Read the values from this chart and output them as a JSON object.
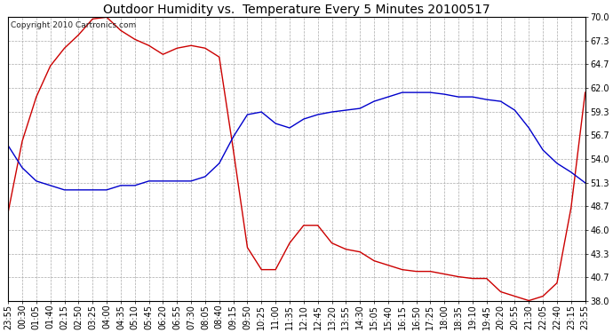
{
  "title": "Outdoor Humidity vs.  Temperature Every 5 Minutes 20100517",
  "copyright_text": "Copyright 2010 Cartronics.com",
  "y_ticks": [
    38.0,
    40.7,
    43.3,
    46.0,
    48.7,
    51.3,
    54.0,
    56.7,
    59.3,
    62.0,
    64.7,
    67.3,
    70.0
  ],
  "ylim": [
    38.0,
    70.0
  ],
  "background_color": "#ffffff",
  "grid_color": "#aaaaaa",
  "red_color": "#cc0000",
  "blue_color": "#0000cc",
  "x_labels": [
    "23:55",
    "00:30",
    "01:05",
    "01:40",
    "02:15",
    "02:50",
    "03:25",
    "04:00",
    "04:35",
    "05:10",
    "05:45",
    "06:20",
    "06:55",
    "07:30",
    "08:05",
    "08:40",
    "09:15",
    "09:50",
    "10:25",
    "11:00",
    "11:35",
    "12:10",
    "12:45",
    "13:20",
    "13:55",
    "14:30",
    "15:05",
    "15:40",
    "16:15",
    "16:50",
    "17:25",
    "18:00",
    "18:35",
    "19:10",
    "19:45",
    "20:20",
    "20:55",
    "21:30",
    "22:05",
    "22:40",
    "23:15",
    "23:55"
  ],
  "red_data": [
    48.0,
    56.0,
    61.0,
    64.5,
    66.5,
    68.0,
    69.8,
    70.0,
    68.5,
    67.5,
    66.8,
    65.8,
    66.5,
    66.8,
    66.5,
    65.5,
    55.0,
    44.0,
    41.5,
    41.5,
    44.5,
    46.5,
    46.5,
    44.5,
    43.8,
    43.5,
    42.5,
    42.0,
    41.5,
    41.3,
    41.3,
    41.0,
    40.7,
    40.5,
    40.5,
    39.0,
    38.5,
    38.0,
    38.5,
    40.0,
    48.5,
    61.5
  ],
  "blue_data": [
    55.5,
    53.0,
    51.5,
    51.0,
    50.5,
    50.5,
    50.5,
    50.5,
    51.0,
    51.0,
    51.5,
    51.5,
    51.5,
    51.5,
    52.0,
    53.5,
    56.5,
    59.0,
    59.3,
    58.0,
    57.5,
    58.5,
    59.0,
    59.3,
    59.5,
    59.7,
    60.5,
    61.0,
    61.5,
    61.5,
    61.5,
    61.3,
    61.0,
    61.0,
    60.7,
    60.5,
    59.5,
    57.5,
    55.0,
    53.5,
    52.5,
    51.3
  ],
  "figsize": [
    6.9,
    3.75
  ],
  "dpi": 100,
  "title_fontsize": 10,
  "tick_fontsize": 7,
  "copyright_fontsize": 6.5
}
